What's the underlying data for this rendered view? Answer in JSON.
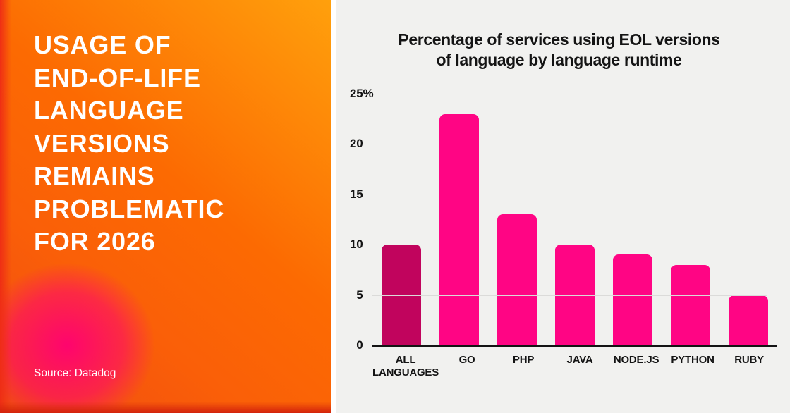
{
  "left_panel": {
    "title": "USAGE OF\nEND-OF-LIFE\nLANGUAGE\nVERSIONS\nREMAINS\nPROBLEMATIC\nFOR 2026",
    "source": "Source: Datadog",
    "colors": {
      "base_orange": "#fc6a02",
      "amber_top_right": "#ffa00c",
      "red_edge": "#ee2c15",
      "pink_glow": "#ff0073",
      "bottom_strip": "#d3230c",
      "text": "#ffffff"
    }
  },
  "chart": {
    "title": "Percentage of services using EOL versions\nof language by language runtime"
  },
  "chart_data": {
    "type": "bar",
    "title": "Percentage of services using EOL versions of language by language runtime",
    "categories": [
      "ALL\nLANGUAGES",
      "GO",
      "PHP",
      "JAVA",
      "NODE.JS",
      "PYTHON",
      "RUBY"
    ],
    "values": [
      10,
      23,
      13,
      10,
      9,
      8,
      5
    ],
    "unit": "%",
    "xlabel": "",
    "ylabel": "",
    "ylim": [
      0,
      25
    ],
    "yticks": [
      {
        "value": 25,
        "label": "25",
        "suffix": "%"
      },
      {
        "value": 20,
        "label": "20",
        "suffix": ""
      },
      {
        "value": 15,
        "label": "15",
        "suffix": ""
      },
      {
        "value": 10,
        "label": "10",
        "suffix": ""
      },
      {
        "value": 5,
        "label": "5",
        "suffix": ""
      },
      {
        "value": 0,
        "label": "0",
        "suffix": ""
      }
    ],
    "grid": "horizontal",
    "legend": "none",
    "highlight_index": 0,
    "colors": {
      "highlight_bar": "#c1045d",
      "default_bar": "#ff0584",
      "gridline": "#dbdbd9",
      "axis": "#141414",
      "text": "#141414",
      "background": "#f1f1ef"
    }
  }
}
